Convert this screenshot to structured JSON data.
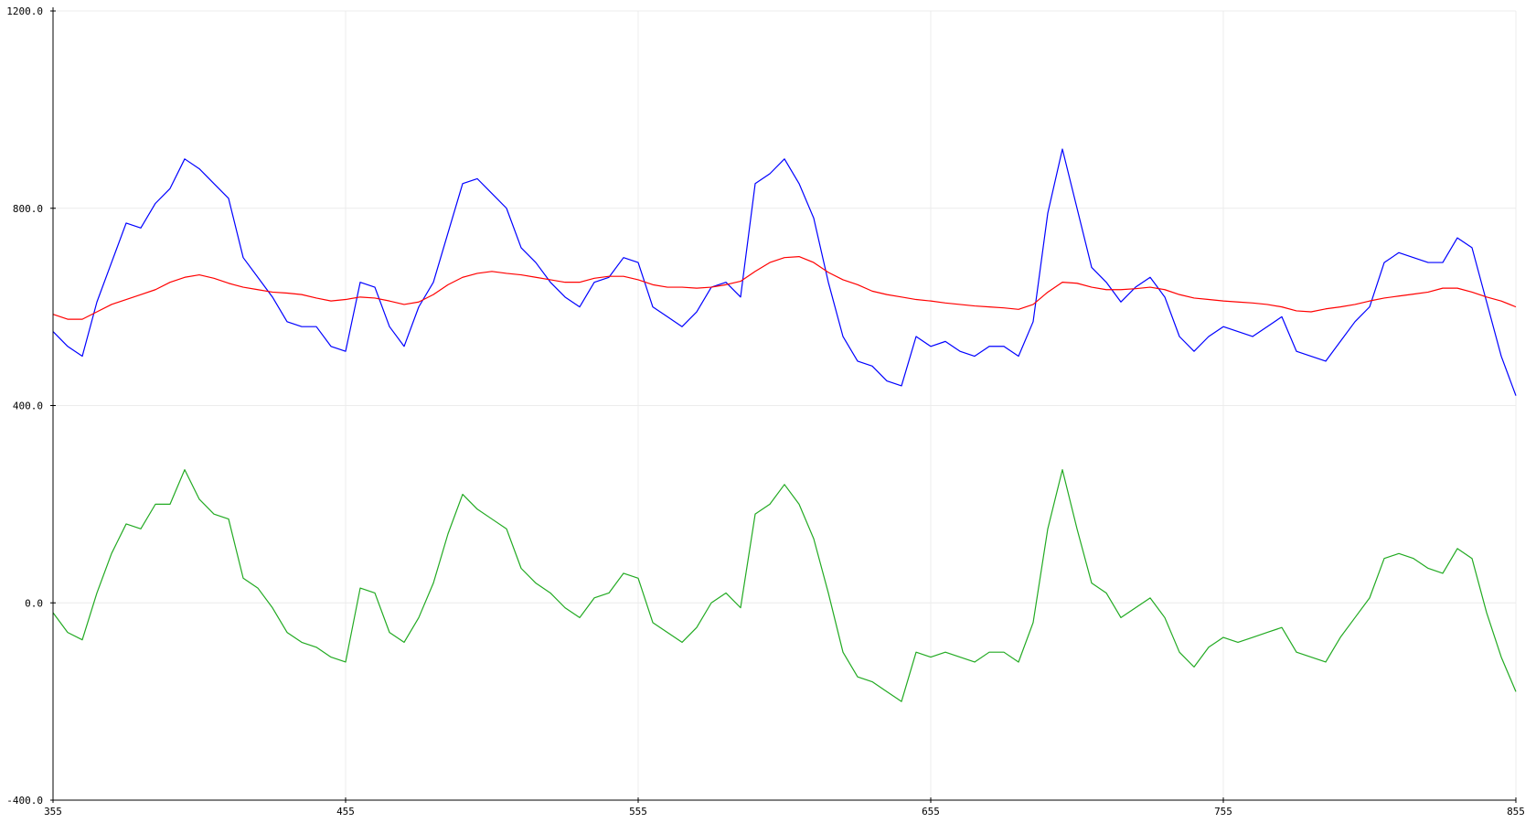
{
  "window": {
    "title": ""
  },
  "colors": {
    "background": "#ffffff",
    "grid": "#ececec",
    "axis": "#000000"
  },
  "chart_data": {
    "type": "line",
    "title": "",
    "xlabel": "",
    "ylabel": "",
    "xlim": [
      355,
      855
    ],
    "ylim": [
      -400,
      1200
    ],
    "grid": true,
    "legend": "none",
    "xticks": [
      {
        "value": 355,
        "label": "355"
      },
      {
        "value": 455,
        "label": "455"
      },
      {
        "value": 555,
        "label": "555"
      },
      {
        "value": 655,
        "label": "655"
      },
      {
        "value": 755,
        "label": "755"
      },
      {
        "value": 855,
        "label": "855"
      }
    ],
    "yticks": [
      {
        "value": 1200,
        "label": "1200.0"
      },
      {
        "value": 800,
        "label": "800.0"
      },
      {
        "value": 400,
        "label": "400.0"
      },
      {
        "value": 0,
        "label": "0.0"
      },
      {
        "value": -400,
        "label": "-400.0"
      }
    ],
    "series": [
      {
        "color": "#0000ff",
        "points": [
          [
            355,
            550
          ],
          [
            360,
            520
          ],
          [
            365,
            500
          ],
          [
            370,
            610
          ],
          [
            375,
            690
          ],
          [
            380,
            770
          ],
          [
            385,
            760
          ],
          [
            390,
            810
          ],
          [
            395,
            840
          ],
          [
            400,
            900
          ],
          [
            405,
            880
          ],
          [
            410,
            850
          ],
          [
            415,
            820
          ],
          [
            420,
            700
          ],
          [
            425,
            660
          ],
          [
            430,
            620
          ],
          [
            435,
            570
          ],
          [
            440,
            560
          ],
          [
            445,
            560
          ],
          [
            450,
            520
          ],
          [
            455,
            510
          ],
          [
            460,
            650
          ],
          [
            465,
            640
          ],
          [
            470,
            560
          ],
          [
            475,
            520
          ],
          [
            480,
            600
          ],
          [
            485,
            650
          ],
          [
            490,
            750
          ],
          [
            495,
            850
          ],
          [
            500,
            860
          ],
          [
            505,
            830
          ],
          [
            510,
            800
          ],
          [
            515,
            720
          ],
          [
            520,
            690
          ],
          [
            525,
            650
          ],
          [
            530,
            620
          ],
          [
            535,
            600
          ],
          [
            540,
            650
          ],
          [
            545,
            660
          ],
          [
            550,
            700
          ],
          [
            555,
            690
          ],
          [
            560,
            600
          ],
          [
            565,
            580
          ],
          [
            570,
            560
          ],
          [
            575,
            590
          ],
          [
            580,
            640
          ],
          [
            585,
            650
          ],
          [
            590,
            620
          ],
          [
            595,
            850
          ],
          [
            600,
            870
          ],
          [
            605,
            900
          ],
          [
            610,
            850
          ],
          [
            615,
            780
          ],
          [
            620,
            650
          ],
          [
            625,
            540
          ],
          [
            630,
            490
          ],
          [
            635,
            480
          ],
          [
            640,
            450
          ],
          [
            645,
            440
          ],
          [
            650,
            540
          ],
          [
            655,
            520
          ],
          [
            660,
            530
          ],
          [
            665,
            510
          ],
          [
            670,
            500
          ],
          [
            675,
            520
          ],
          [
            680,
            520
          ],
          [
            685,
            500
          ],
          [
            690,
            570
          ],
          [
            695,
            790
          ],
          [
            700,
            920
          ],
          [
            705,
            800
          ],
          [
            710,
            680
          ],
          [
            715,
            650
          ],
          [
            720,
            610
          ],
          [
            725,
            640
          ],
          [
            730,
            660
          ],
          [
            735,
            620
          ],
          [
            740,
            540
          ],
          [
            745,
            510
          ],
          [
            750,
            540
          ],
          [
            755,
            560
          ],
          [
            760,
            550
          ],
          [
            765,
            540
          ],
          [
            770,
            560
          ],
          [
            775,
            580
          ],
          [
            780,
            510
          ],
          [
            785,
            500
          ],
          [
            790,
            490
          ],
          [
            795,
            530
          ],
          [
            800,
            570
          ],
          [
            805,
            600
          ],
          [
            810,
            690
          ],
          [
            815,
            710
          ],
          [
            820,
            700
          ],
          [
            825,
            690
          ],
          [
            830,
            690
          ],
          [
            835,
            740
          ],
          [
            840,
            720
          ],
          [
            845,
            610
          ],
          [
            850,
            500
          ],
          [
            855,
            420
          ]
        ]
      },
      {
        "color": "#ff0000",
        "points": [
          [
            355,
            585
          ],
          [
            360,
            575
          ],
          [
            365,
            575
          ],
          [
            370,
            590
          ],
          [
            375,
            605
          ],
          [
            380,
            615
          ],
          [
            385,
            625
          ],
          [
            390,
            635
          ],
          [
            395,
            650
          ],
          [
            400,
            660
          ],
          [
            405,
            665
          ],
          [
            410,
            658
          ],
          [
            415,
            648
          ],
          [
            420,
            640
          ],
          [
            425,
            635
          ],
          [
            430,
            630
          ],
          [
            435,
            628
          ],
          [
            440,
            625
          ],
          [
            445,
            618
          ],
          [
            450,
            612
          ],
          [
            455,
            615
          ],
          [
            460,
            620
          ],
          [
            465,
            618
          ],
          [
            470,
            612
          ],
          [
            475,
            605
          ],
          [
            480,
            610
          ],
          [
            485,
            625
          ],
          [
            490,
            645
          ],
          [
            495,
            660
          ],
          [
            500,
            668
          ],
          [
            505,
            672
          ],
          [
            510,
            668
          ],
          [
            515,
            665
          ],
          [
            520,
            660
          ],
          [
            525,
            655
          ],
          [
            530,
            650
          ],
          [
            535,
            650
          ],
          [
            540,
            658
          ],
          [
            545,
            662
          ],
          [
            550,
            662
          ],
          [
            555,
            655
          ],
          [
            560,
            645
          ],
          [
            565,
            640
          ],
          [
            570,
            640
          ],
          [
            575,
            638
          ],
          [
            580,
            640
          ],
          [
            585,
            645
          ],
          [
            590,
            652
          ],
          [
            595,
            672
          ],
          [
            600,
            690
          ],
          [
            605,
            700
          ],
          [
            610,
            702
          ],
          [
            615,
            690
          ],
          [
            620,
            670
          ],
          [
            625,
            655
          ],
          [
            630,
            645
          ],
          [
            635,
            632
          ],
          [
            640,
            625
          ],
          [
            645,
            620
          ],
          [
            650,
            615
          ],
          [
            655,
            612
          ],
          [
            660,
            608
          ],
          [
            665,
            605
          ],
          [
            670,
            602
          ],
          [
            675,
            600
          ],
          [
            680,
            598
          ],
          [
            685,
            595
          ],
          [
            690,
            605
          ],
          [
            695,
            630
          ],
          [
            700,
            650
          ],
          [
            705,
            648
          ],
          [
            710,
            640
          ],
          [
            715,
            635
          ],
          [
            720,
            635
          ],
          [
            725,
            637
          ],
          [
            730,
            640
          ],
          [
            735,
            635
          ],
          [
            740,
            625
          ],
          [
            745,
            618
          ],
          [
            750,
            615
          ],
          [
            755,
            612
          ],
          [
            760,
            610
          ],
          [
            765,
            608
          ],
          [
            770,
            605
          ],
          [
            775,
            600
          ],
          [
            780,
            592
          ],
          [
            785,
            590
          ],
          [
            790,
            596
          ],
          [
            795,
            600
          ],
          [
            800,
            605
          ],
          [
            805,
            612
          ],
          [
            810,
            618
          ],
          [
            815,
            622
          ],
          [
            820,
            626
          ],
          [
            825,
            630
          ],
          [
            830,
            638
          ],
          [
            835,
            638
          ],
          [
            840,
            630
          ],
          [
            845,
            620
          ],
          [
            850,
            612
          ],
          [
            855,
            600
          ]
        ]
      },
      {
        "color": "#22aa22",
        "points": [
          [
            355,
            -20
          ],
          [
            360,
            -60
          ],
          [
            365,
            -75
          ],
          [
            370,
            20
          ],
          [
            375,
            100
          ],
          [
            380,
            160
          ],
          [
            385,
            150
          ],
          [
            390,
            200
          ],
          [
            395,
            200
          ],
          [
            400,
            270
          ],
          [
            405,
            210
          ],
          [
            410,
            180
          ],
          [
            415,
            170
          ],
          [
            420,
            50
          ],
          [
            425,
            30
          ],
          [
            430,
            -10
          ],
          [
            435,
            -60
          ],
          [
            440,
            -80
          ],
          [
            445,
            -90
          ],
          [
            450,
            -110
          ],
          [
            455,
            -120
          ],
          [
            460,
            30
          ],
          [
            465,
            20
          ],
          [
            470,
            -60
          ],
          [
            475,
            -80
          ],
          [
            480,
            -30
          ],
          [
            485,
            40
          ],
          [
            490,
            140
          ],
          [
            495,
            220
          ],
          [
            500,
            190
          ],
          [
            505,
            170
          ],
          [
            510,
            150
          ],
          [
            515,
            70
          ],
          [
            520,
            40
          ],
          [
            525,
            20
          ],
          [
            530,
            -10
          ],
          [
            535,
            -30
          ],
          [
            540,
            10
          ],
          [
            545,
            20
          ],
          [
            550,
            60
          ],
          [
            555,
            50
          ],
          [
            560,
            -40
          ],
          [
            565,
            -60
          ],
          [
            570,
            -80
          ],
          [
            575,
            -50
          ],
          [
            580,
            0
          ],
          [
            585,
            20
          ],
          [
            590,
            -10
          ],
          [
            595,
            180
          ],
          [
            600,
            200
          ],
          [
            605,
            240
          ],
          [
            610,
            200
          ],
          [
            615,
            130
          ],
          [
            620,
            20
          ],
          [
            625,
            -100
          ],
          [
            630,
            -150
          ],
          [
            635,
            -160
          ],
          [
            640,
            -180
          ],
          [
            645,
            -200
          ],
          [
            650,
            -100
          ],
          [
            655,
            -110
          ],
          [
            660,
            -100
          ],
          [
            665,
            -110
          ],
          [
            670,
            -120
          ],
          [
            675,
            -100
          ],
          [
            680,
            -100
          ],
          [
            685,
            -120
          ],
          [
            690,
            -40
          ],
          [
            695,
            150
          ],
          [
            700,
            270
          ],
          [
            705,
            150
          ],
          [
            710,
            40
          ],
          [
            715,
            20
          ],
          [
            720,
            -30
          ],
          [
            725,
            -10
          ],
          [
            730,
            10
          ],
          [
            735,
            -30
          ],
          [
            740,
            -100
          ],
          [
            745,
            -130
          ],
          [
            750,
            -90
          ],
          [
            755,
            -70
          ],
          [
            760,
            -80
          ],
          [
            765,
            -70
          ],
          [
            770,
            -60
          ],
          [
            775,
            -50
          ],
          [
            780,
            -100
          ],
          [
            785,
            -110
          ],
          [
            790,
            -120
          ],
          [
            795,
            -70
          ],
          [
            800,
            -30
          ],
          [
            805,
            10
          ],
          [
            810,
            90
          ],
          [
            815,
            100
          ],
          [
            820,
            90
          ],
          [
            825,
            70
          ],
          [
            830,
            60
          ],
          [
            835,
            110
          ],
          [
            840,
            90
          ],
          [
            845,
            -20
          ],
          [
            850,
            -110
          ],
          [
            855,
            -180
          ]
        ]
      }
    ]
  }
}
